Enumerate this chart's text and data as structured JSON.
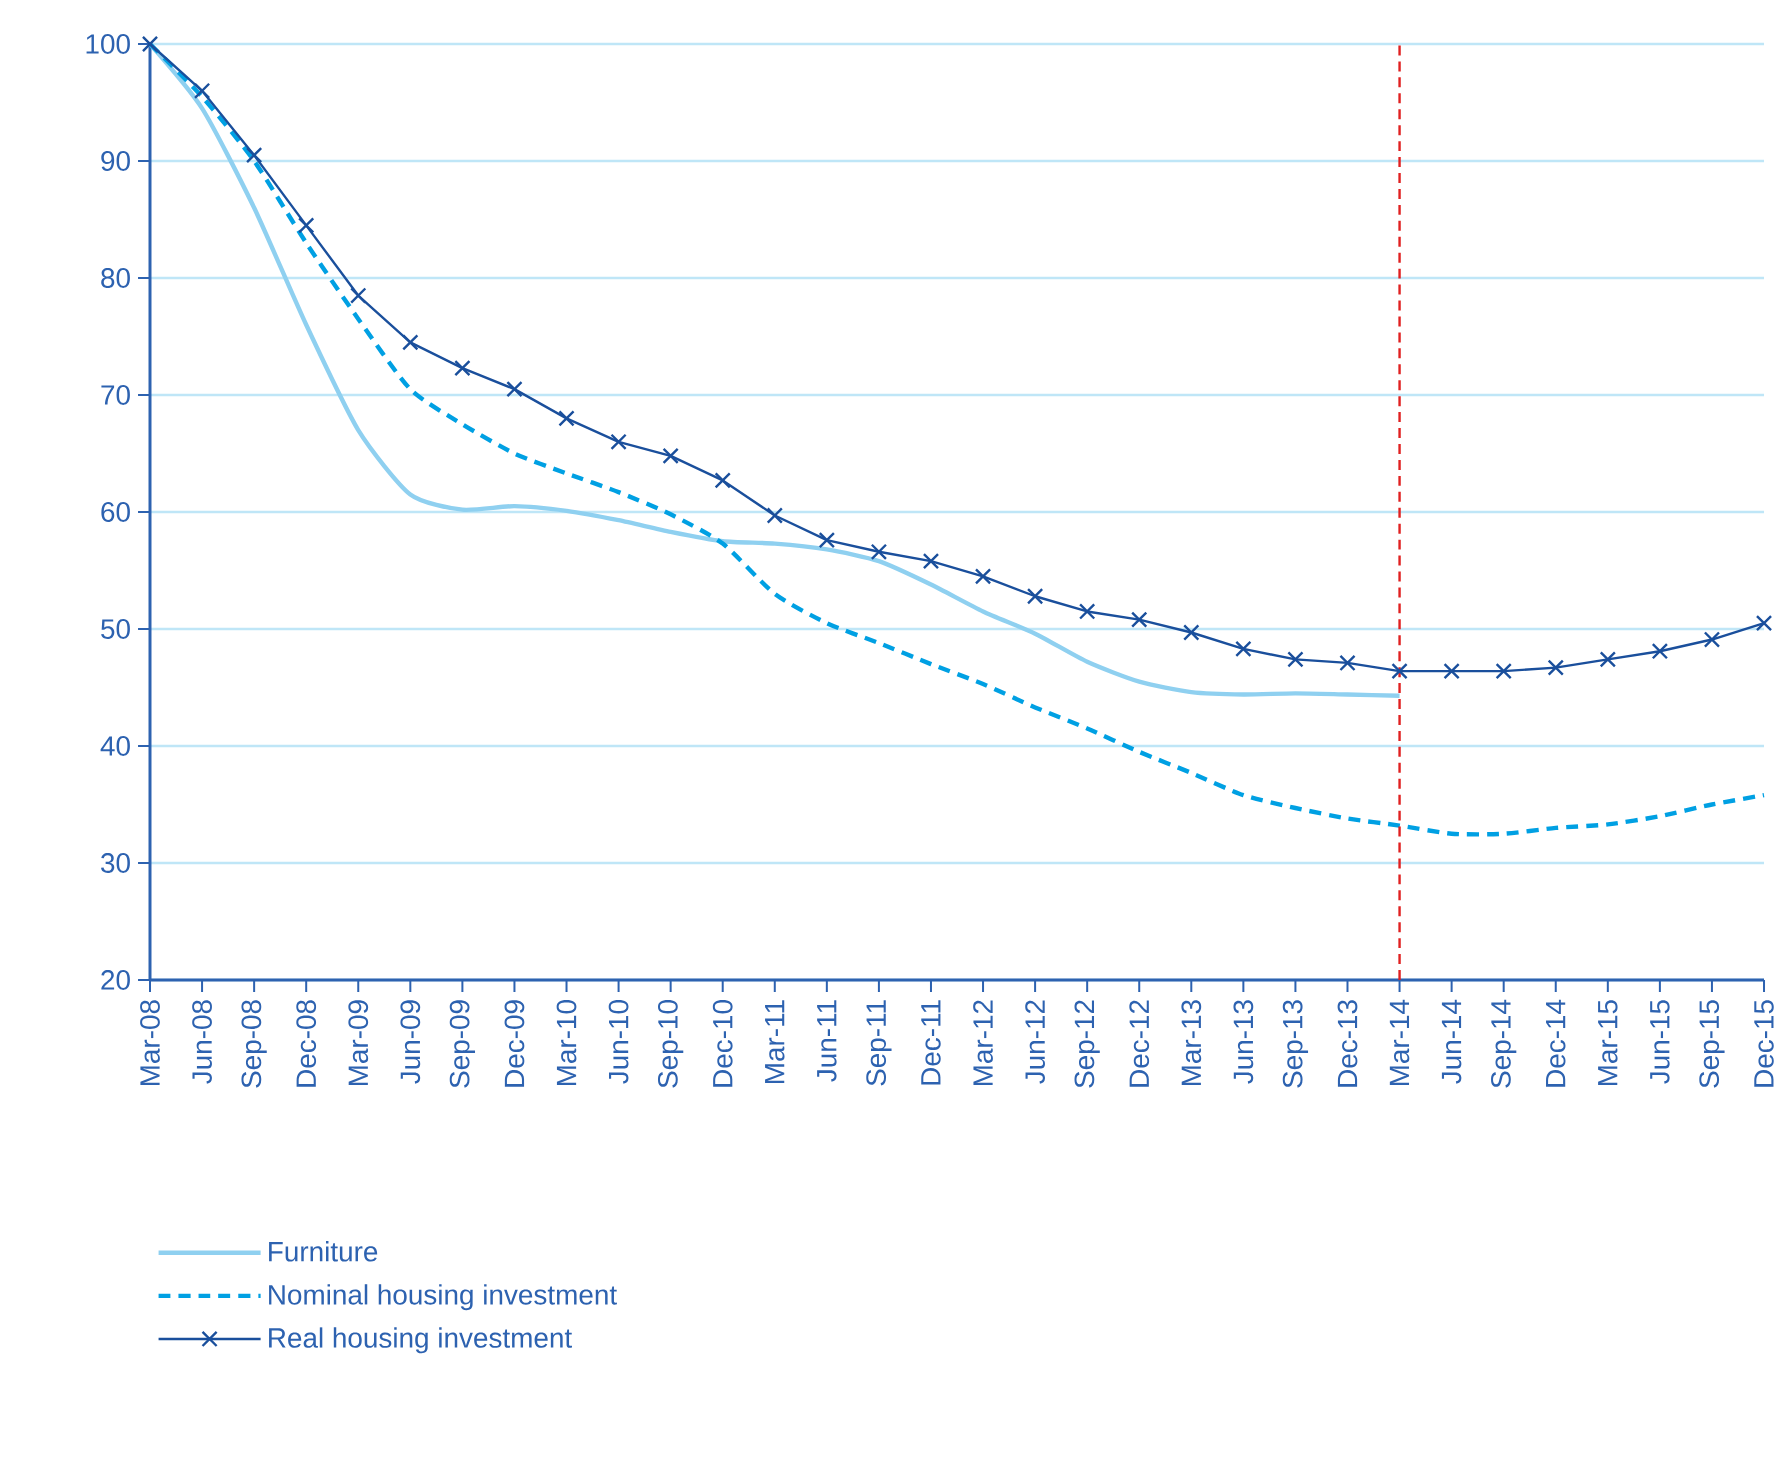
{
  "chart_data": {
    "type": "line",
    "categories": [
      "Mar-08",
      "Jun-08",
      "Sep-08",
      "Dec-08",
      "Mar-09",
      "Jun-09",
      "Sep-09",
      "Dec-09",
      "Mar-10",
      "Jun-10",
      "Sep-10",
      "Dec-10",
      "Mar-11",
      "Jun-11",
      "Sep-11",
      "Dec-11",
      "Mar-12",
      "Jun-12",
      "Sep-12",
      "Dec-12",
      "Mar-13",
      "Jun-13",
      "Sep-13",
      "Dec-13",
      "Mar-14",
      "Jun-14",
      "Sep-14",
      "Dec-14",
      "Mar-15",
      "Jun-15",
      "Sep-15",
      "Dec-15"
    ],
    "series": [
      {
        "name": "Furniture",
        "color": "#8fd0f0",
        "line_style": "solid",
        "marker": "none",
        "values": [
          100,
          94.5,
          86,
          76,
          67,
          61.5,
          60.2,
          60.5,
          60.1,
          59.3,
          58.3,
          57.5,
          57.3,
          56.8,
          55.8,
          53.8,
          51.5,
          49.6,
          47.2,
          45.5,
          44.6,
          44.4,
          44.5,
          44.4,
          44.3,
          null,
          null,
          null,
          null,
          null,
          null,
          null
        ]
      },
      {
        "name": "Nominal housing investment",
        "color": "#00a0e3",
        "line_style": "dashed",
        "marker": "none",
        "values": [
          100,
          95.5,
          90,
          83,
          76.5,
          70.5,
          67.5,
          65,
          63.3,
          61.7,
          59.8,
          57.3,
          53,
          50.5,
          48.8,
          47,
          45.3,
          43.3,
          41.5,
          39.5,
          37.7,
          35.8,
          34.7,
          33.8,
          33.2,
          32.5,
          32.5,
          33,
          33.3,
          34,
          35,
          35.8
        ]
      },
      {
        "name": "Real housing investment",
        "color": "#1a4f9c",
        "line_style": "solid",
        "marker": "cross",
        "values": [
          100,
          96,
          90.5,
          84.5,
          78.5,
          74.5,
          72.3,
          70.5,
          68,
          66,
          64.8,
          62.7,
          59.7,
          57.6,
          56.6,
          55.8,
          54.5,
          52.8,
          51.5,
          50.8,
          49.7,
          48.3,
          47.4,
          47.1,
          46.4,
          46.4,
          46.4,
          46.7,
          47.4,
          48.1,
          49.1,
          50.5
        ]
      }
    ],
    "ylim": [
      20,
      100
    ],
    "yticks": [
      20,
      30,
      40,
      50,
      60,
      70,
      80,
      90,
      100
    ],
    "grid": "y",
    "legend": "bottom",
    "ref_lines": [
      {
        "axis": "x",
        "value": "Mar-14",
        "color": "#e02020",
        "line_style": "dashed"
      }
    ]
  }
}
